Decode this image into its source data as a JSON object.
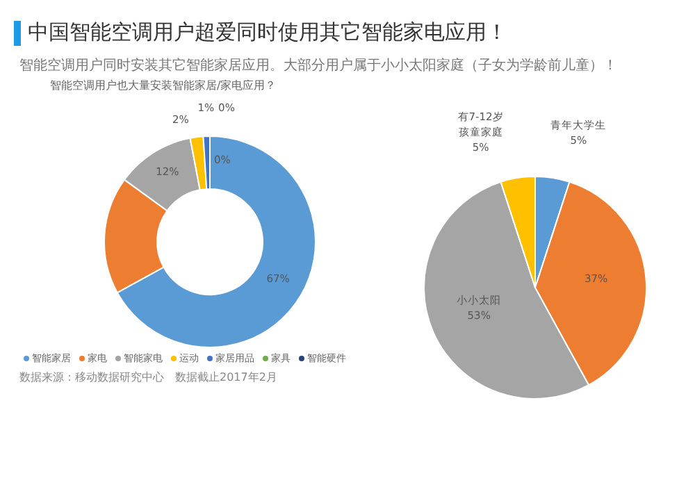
{
  "chart_data": [
    {
      "type": "donut",
      "title": "中国智能空调用户超爱同时使用其它智能家电应用！",
      "subtitle": "智能空调用户同时安装其它智能家居应用。大部分用户属于小小太阳家庭（子女为学龄前儿童）！",
      "xlabel": "智能空调用户也大量安装智能家居/家电应用？",
      "categories": [
        "智能家居",
        "家电",
        "智能家电",
        "运动",
        "家居用品",
        "家具",
        "智能硬件"
      ],
      "values": [
        67,
        18,
        12,
        2,
        1,
        0,
        0
      ],
      "colors": [
        "#5b9bd5",
        "#ed7d31",
        "#a5a5a5",
        "#ffc000",
        "#4472c4",
        "#70ad47",
        "#264478"
      ],
      "value_labels": [
        "67%",
        null,
        "12%",
        "2%",
        "1%",
        "0%",
        "0%"
      ],
      "legend": "bottom",
      "annotations": [
        "数据来源：移动数据研究中心　数据截止2017年2月"
      ]
    },
    {
      "type": "pie",
      "categories": [
        "青年大学生",
        null,
        "小小太阳",
        "有7-12岁孩童家庭"
      ],
      "values": [
        5,
        37,
        53,
        5
      ],
      "colors": [
        "#5b9bd5",
        "#ed7d31",
        "#a5a5a5",
        "#ffc000"
      ],
      "value_labels": [
        "5%",
        "37%",
        "53%",
        "5%"
      ]
    }
  ]
}
